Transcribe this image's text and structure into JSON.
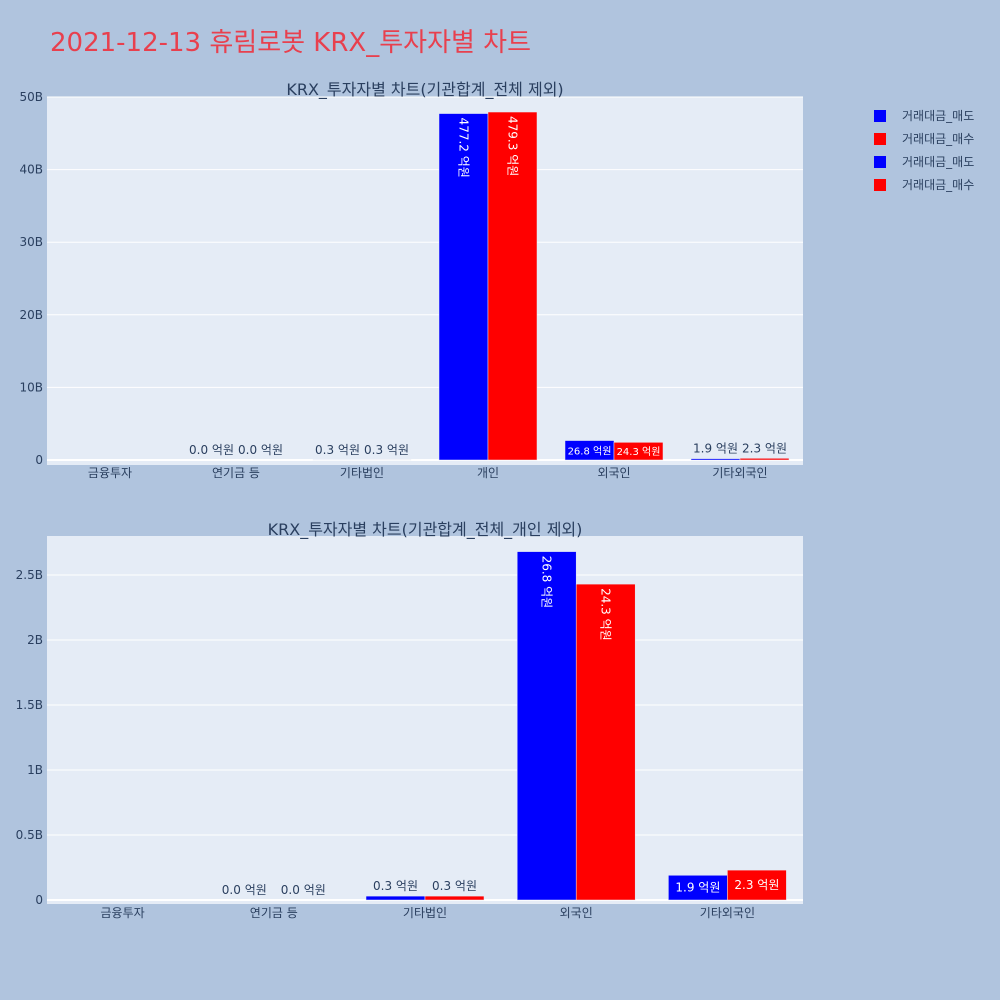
{
  "page": {
    "title": "2021-12-13 휴림로봇 KRX_투자자별 차트",
    "title_color": "#e8404e",
    "background": "#b0c4de",
    "plot_background": "#e5ecf6"
  },
  "legend": {
    "items": [
      {
        "label": "거래대금_매도",
        "color": "#0000ff"
      },
      {
        "label": "거래대금_매수",
        "color": "#ff0000"
      },
      {
        "label": "거래대금_매도",
        "color": "#0000ff"
      },
      {
        "label": "거래대금_매수",
        "color": "#ff0000"
      }
    ]
  },
  "chart_data": [
    {
      "type": "bar",
      "title": "KRX_투자자별 차트(기관합계_전체 제외)",
      "categories": [
        "금융투자",
        "연기금 등",
        "기타법인",
        "개인",
        "외국인",
        "기타외국인"
      ],
      "ylim": [
        0,
        50000000000
      ],
      "yticks": [
        0,
        10000000000,
        20000000000,
        30000000000,
        40000000000,
        50000000000
      ],
      "ytick_labels": [
        "0",
        "10B",
        "20B",
        "30B",
        "40B",
        "50B"
      ],
      "series": [
        {
          "name": "거래대금_매도",
          "color": "#0000ff",
          "values": [
            0,
            0,
            30000000,
            47720000000,
            2680000000,
            190000000
          ],
          "labels": [
            "",
            "0.0 억원",
            "0.3 억원",
            "477.2 억원",
            "26.8 억원",
            "1.9 억원"
          ]
        },
        {
          "name": "거래대금_매수",
          "color": "#ff0000",
          "values": [
            0,
            0,
            30000000,
            47930000000,
            2430000000,
            230000000
          ],
          "labels": [
            "",
            "0.0 억원",
            "0.3 억원",
            "479.3 억원",
            "24.3 억원",
            "2.3 억원"
          ]
        }
      ],
      "grid": true
    },
    {
      "type": "bar",
      "title": "KRX_투자자별 차트(기관합계_전체_개인 제외)",
      "categories": [
        "금융투자",
        "연기금 등",
        "기타법인",
        "외국인",
        "기타외국인"
      ],
      "ylim": [
        0,
        2800000000
      ],
      "yticks": [
        0,
        500000000,
        1000000000,
        1500000000,
        2000000000,
        2500000000
      ],
      "ytick_labels": [
        "0",
        "0.5B",
        "1B",
        "1.5B",
        "2B",
        "2.5B"
      ],
      "series": [
        {
          "name": "거래대금_매도",
          "color": "#0000ff",
          "values": [
            0,
            0,
            30000000,
            2680000000,
            190000000
          ],
          "labels": [
            "",
            "0.0 억원",
            "0.3 억원",
            "26.8 억원",
            "1.9 억원"
          ]
        },
        {
          "name": "거래대금_매수",
          "color": "#ff0000",
          "values": [
            0,
            0,
            30000000,
            2430000000,
            230000000
          ],
          "labels": [
            "",
            "0.0 억원",
            "0.3 억원",
            "24.3 억원",
            "2.3 억원"
          ]
        }
      ],
      "grid": true
    }
  ]
}
